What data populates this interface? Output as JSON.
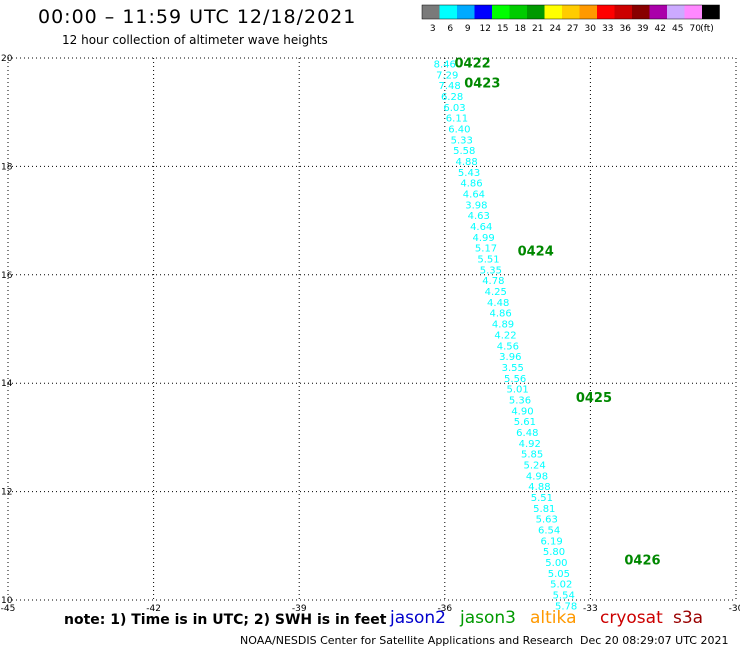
{
  "header": {
    "title": "00:00 – 11:59 UTC 12/18/2021",
    "subtitle": "12 hour collection of altimeter wave heights"
  },
  "colorbar": {
    "unit": "(ft)",
    "bins": [
      {
        "label": "3",
        "color": "#7a7a7a"
      },
      {
        "label": "6",
        "color": "#00ffff"
      },
      {
        "label": "9",
        "color": "#00aaff"
      },
      {
        "label": "12",
        "color": "#0000ff"
      },
      {
        "label": "15",
        "color": "#00ff00"
      },
      {
        "label": "18",
        "color": "#00cc00"
      },
      {
        "label": "21",
        "color": "#009900"
      },
      {
        "label": "24",
        "color": "#ffff00"
      },
      {
        "label": "27",
        "color": "#ffcc00"
      },
      {
        "label": "30",
        "color": "#ff9900"
      },
      {
        "label": "33",
        "color": "#ff0000"
      },
      {
        "label": "36",
        "color": "#cc0000"
      },
      {
        "label": "39",
        "color": "#880000"
      },
      {
        "label": "42",
        "color": "#aa00aa"
      },
      {
        "label": "45",
        "color": "#ccaaff"
      },
      {
        "label": "70",
        "color": "#ff88ff"
      },
      {
        "label": "",
        "color": "#000000"
      }
    ]
  },
  "chart_data": {
    "type": "scatter",
    "title": "00:00 – 11:59 UTC 12/18/2021",
    "subtitle": "12 hour collection of altimeter wave heights",
    "xlabel": "",
    "ylabel": "",
    "xlim": [
      -45,
      -30
    ],
    "ylim": [
      10,
      20
    ],
    "xticks": [
      "-45",
      "-42",
      "-39",
      "-36",
      "-33",
      "-30"
    ],
    "xtick_values": [
      -45,
      -42,
      -39,
      -36,
      -33,
      -30
    ],
    "yticks": [
      "20",
      "18",
      "16",
      "14",
      "12",
      "10"
    ],
    "ytick_values": [
      20,
      18,
      16,
      14,
      12,
      10
    ],
    "grid": true,
    "point_color": "#00ffff",
    "time_label_color": "#008800",
    "series": [
      {
        "values": [
          {
            "x": -36.0,
            "y": 19.9,
            "v": "8.46"
          },
          {
            "x": -35.95,
            "y": 19.7,
            "v": "7.29"
          },
          {
            "x": -35.9,
            "y": 19.5,
            "v": "7.48"
          },
          {
            "x": -35.85,
            "y": 19.3,
            "v": "6.28"
          },
          {
            "x": -35.8,
            "y": 19.1,
            "v": "6.03"
          },
          {
            "x": -35.75,
            "y": 18.9,
            "v": "6.11"
          },
          {
            "x": -35.7,
            "y": 18.7,
            "v": "6.40"
          },
          {
            "x": -35.65,
            "y": 18.5,
            "v": "5.33"
          },
          {
            "x": -35.6,
            "y": 18.3,
            "v": "5.58"
          },
          {
            "x": -35.55,
            "y": 18.1,
            "v": "4.88"
          },
          {
            "x": -35.5,
            "y": 17.9,
            "v": "5.43"
          },
          {
            "x": -35.45,
            "y": 17.7,
            "v": "4.86"
          },
          {
            "x": -35.4,
            "y": 17.5,
            "v": "4.64"
          },
          {
            "x": -35.35,
            "y": 17.3,
            "v": "3.98"
          },
          {
            "x": -35.3,
            "y": 17.1,
            "v": "4.63"
          },
          {
            "x": -35.25,
            "y": 16.9,
            "v": "4.64"
          },
          {
            "x": -35.2,
            "y": 16.7,
            "v": "4.99"
          },
          {
            "x": -35.15,
            "y": 16.5,
            "v": "5.17"
          },
          {
            "x": -35.1,
            "y": 16.3,
            "v": "5.51"
          },
          {
            "x": -35.05,
            "y": 16.1,
            "v": "5.35"
          },
          {
            "x": -35.0,
            "y": 15.9,
            "v": "4.78"
          },
          {
            "x": -34.95,
            "y": 15.7,
            "v": "4.25"
          },
          {
            "x": -34.9,
            "y": 15.5,
            "v": "4.48"
          },
          {
            "x": -34.85,
            "y": 15.3,
            "v": "4.86"
          },
          {
            "x": -34.8,
            "y": 15.1,
            "v": "4.89"
          },
          {
            "x": -34.75,
            "y": 14.9,
            "v": "4.22"
          },
          {
            "x": -34.7,
            "y": 14.7,
            "v": "4.56"
          },
          {
            "x": -34.65,
            "y": 14.5,
            "v": "3.96"
          },
          {
            "x": -34.6,
            "y": 14.3,
            "v": "3.55"
          },
          {
            "x": -34.55,
            "y": 14.1,
            "v": "5.56"
          },
          {
            "x": -34.5,
            "y": 13.9,
            "v": "5.01"
          },
          {
            "x": -34.45,
            "y": 13.7,
            "v": "5.36"
          },
          {
            "x": -34.4,
            "y": 13.5,
            "v": "4.90"
          },
          {
            "x": -34.35,
            "y": 13.3,
            "v": "5.61"
          },
          {
            "x": -34.3,
            "y": 13.1,
            "v": "6.48"
          },
          {
            "x": -34.25,
            "y": 12.9,
            "v": "4.92"
          },
          {
            "x": -34.2,
            "y": 12.7,
            "v": "5.85"
          },
          {
            "x": -34.15,
            "y": 12.5,
            "v": "5.24"
          },
          {
            "x": -34.1,
            "y": 12.3,
            "v": "4.98"
          },
          {
            "x": -34.05,
            "y": 12.1,
            "v": "4.88"
          },
          {
            "x": -34.0,
            "y": 11.9,
            "v": "5.51"
          },
          {
            "x": -33.95,
            "y": 11.7,
            "v": "5.81"
          },
          {
            "x": -33.9,
            "y": 11.5,
            "v": "5.63"
          },
          {
            "x": -33.85,
            "y": 11.3,
            "v": "6.54"
          },
          {
            "x": -33.8,
            "y": 11.1,
            "v": "6.19"
          },
          {
            "x": -33.75,
            "y": 10.9,
            "v": "5.80"
          },
          {
            "x": -33.7,
            "y": 10.7,
            "v": "5.00"
          },
          {
            "x": -33.65,
            "y": 10.5,
            "v": "5.05"
          },
          {
            "x": -33.6,
            "y": 10.3,
            "v": "5.02"
          },
          {
            "x": -33.55,
            "y": 10.1,
            "v": "5.54"
          },
          {
            "x": -33.5,
            "y": 9.9,
            "v": "5.78"
          }
        ]
      }
    ],
    "time_labels": [
      {
        "label": "0422",
        "x": -35.8,
        "y": 19.92
      },
      {
        "label": "0423",
        "x": -35.6,
        "y": 19.55
      },
      {
        "label": "0424",
        "x": -34.5,
        "y": 16.45
      },
      {
        "label": "0425",
        "x": -33.3,
        "y": 13.75
      },
      {
        "label": "0426",
        "x": -32.3,
        "y": 10.75
      }
    ]
  },
  "footer": {
    "note": "note: 1) Time is in UTC; 2) SWH is in feet",
    "satellites": [
      {
        "name": "jason2",
        "color": "#0000cc"
      },
      {
        "name": "jason3",
        "color": "#009900"
      },
      {
        "name": "altika",
        "color": "#ff9900"
      },
      {
        "name": "cryosat",
        "color": "#cc0000"
      },
      {
        "name": "s3a",
        "color": "#990000"
      }
    ],
    "credit": "NOAA/NESDIS Center for Satellite Applications and Research",
    "timestamp": "Dec 20 08:29:07 UTC 2021"
  }
}
